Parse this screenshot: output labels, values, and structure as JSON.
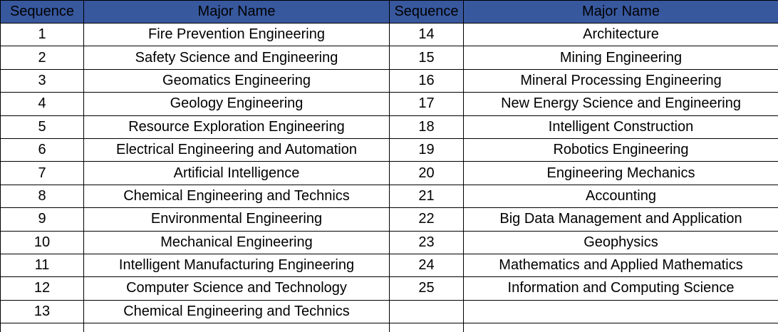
{
  "table": {
    "title": "Majors list table",
    "header_bg": "#38589E",
    "header_text_color": "#000000",
    "grid_color": "#000000",
    "header": {
      "sequence_left": "Sequence",
      "major_left": "Major Name",
      "sequence_right": "Sequence",
      "major_right": "Major Name"
    },
    "rows": [
      {
        "seq_left": "1",
        "major_left": "Fire Prevention Engineering",
        "seq_right": "14",
        "major_right": "Architecture"
      },
      {
        "seq_left": "2",
        "major_left": "Safety Science and Engineering",
        "seq_right": "15",
        "major_right": "Mining Engineering"
      },
      {
        "seq_left": "3",
        "major_left": "Geomatics Engineering",
        "seq_right": "16",
        "major_right": "Mineral Processing Engineering"
      },
      {
        "seq_left": "4",
        "major_left": "Geology Engineering",
        "seq_right": "17",
        "major_right": "New Energy Science and Engineering"
      },
      {
        "seq_left": "5",
        "major_left": "Resource Exploration Engineering",
        "seq_right": "18",
        "major_right": "Intelligent Construction"
      },
      {
        "seq_left": "6",
        "major_left": "Electrical Engineering and Automation",
        "seq_right": "19",
        "major_right": "Robotics Engineering"
      },
      {
        "seq_left": "7",
        "major_left": "Artificial Intelligence",
        "seq_right": "20",
        "major_right": "Engineering Mechanics"
      },
      {
        "seq_left": "8",
        "major_left": "Chemical Engineering and Technics",
        "seq_right": "21",
        "major_right": "Accounting"
      },
      {
        "seq_left": "9",
        "major_left": "Environmental Engineering",
        "seq_right": "22",
        "major_right": "Big Data Management and Application"
      },
      {
        "seq_left": "10",
        "major_left": "Mechanical Engineering",
        "seq_right": "23",
        "major_right": "Geophysics"
      },
      {
        "seq_left": "11",
        "major_left": "Intelligent Manufacturing Engineering",
        "seq_right": "24",
        "major_right": "Mathematics and Applied Mathematics"
      },
      {
        "seq_left": "12",
        "major_left": "Computer Science and Technology",
        "seq_right": "25",
        "major_right": "Information and Computing Science"
      },
      {
        "seq_left": "13",
        "major_left": "Chemical Engineering and Technics",
        "seq_right": "",
        "major_right": ""
      },
      {
        "seq_left": "",
        "major_left": "",
        "seq_right": "",
        "major_right": ""
      }
    ]
  }
}
